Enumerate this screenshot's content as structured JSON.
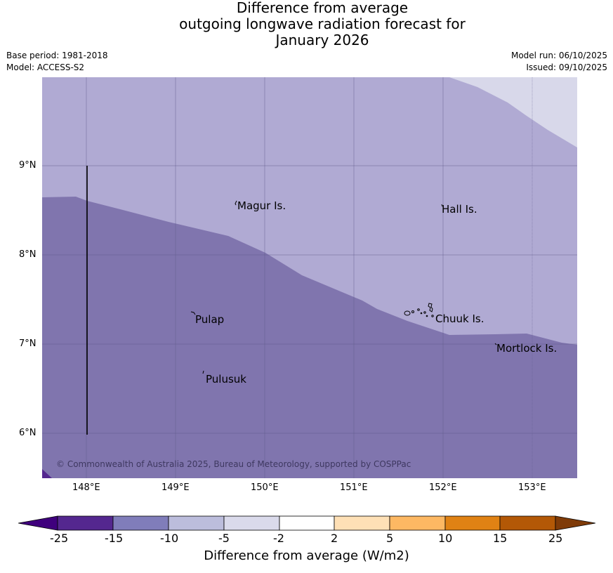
{
  "title": {
    "line1": "Difference from average",
    "line2": "outgoing longwave radiation forecast for",
    "line3": "January 2026"
  },
  "meta": {
    "base_period": "Base period: 1981-2018",
    "model": "Model: ACCESS-S2",
    "model_run": "Model run: 06/10/2025",
    "issued": "Issued: 09/10/2025"
  },
  "map": {
    "lat_labels": [
      "9°N",
      "8°N",
      "7°N",
      "6°N"
    ],
    "lon_labels": [
      "148°E",
      "149°E",
      "150°E",
      "151°E",
      "152°E",
      "153°E"
    ],
    "places": {
      "magur": "Magur Is.",
      "hall": "Hall Is.",
      "pulap": "Pulap",
      "chuuk": "Chuuk Is.",
      "mortlock": "Mortlock Is.",
      "pulusuk": "Pulusuk"
    },
    "copyright": "© Commonwealth of Australia 2025, Bureau of Meteorology, supported by COSPPac",
    "colors": {
      "band_minus15_minus10": "#8075ae",
      "band_minus10_minus5": "#b0aad3",
      "band_minus5_minus2": "#d8d8ea",
      "band_minus25_minus15": "#54278f"
    }
  },
  "colorbar": {
    "label": "Difference from average (W/m2)",
    "ticks": [
      "-25",
      "-15",
      "-10",
      "-5",
      "-2",
      "2",
      "5",
      "10",
      "15",
      "25"
    ],
    "colors": [
      "#3f007d",
      "#54278f",
      "#807dba",
      "#bcbddc",
      "#dadaeb",
      "#ffffff",
      "#fee0b6",
      "#fdb863",
      "#e08214",
      "#b35806",
      "#7f3b08"
    ]
  }
}
